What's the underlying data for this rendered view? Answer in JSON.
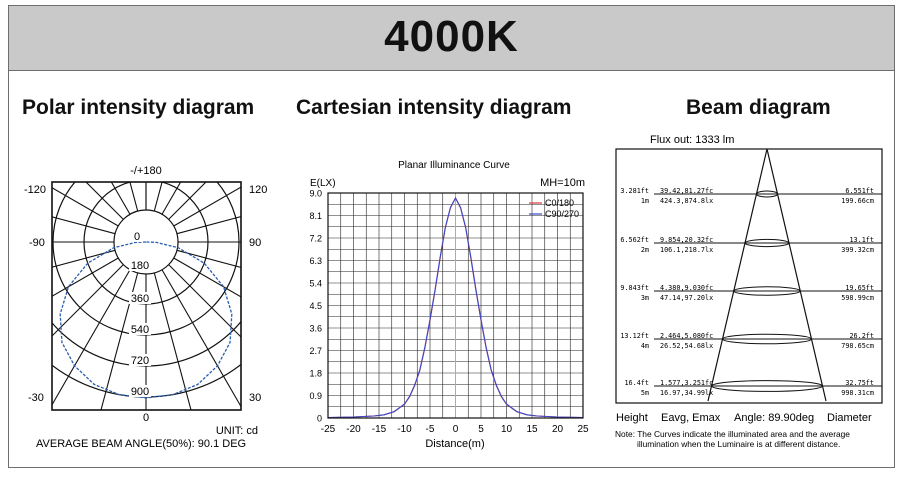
{
  "header": {
    "title": "4000K"
  },
  "sections": {
    "polar_title": "Polar intensity diagram",
    "cartesian_title": "Cartesian intensity diagram",
    "beam_title": "Beam diagram"
  },
  "polar": {
    "angle_labels": {
      "top": "-/+180",
      "upper_left": "-120",
      "upper_right": "120",
      "mid_left": "-90",
      "mid_right": "90",
      "lower_left": "-30",
      "lower_right": "30",
      "bottom": "0"
    },
    "ring_labels": [
      "0",
      "180",
      "360",
      "540",
      "720",
      "900"
    ],
    "unit": "UNIT: cd",
    "average_beam_angle": "AVERAGE BEAM ANGLE(50%): 90.1 DEG",
    "curve_color": "#2a5db0"
  },
  "cartesian": {
    "subtitle": "Planar Illuminance Curve",
    "ylabel": "E(LX)",
    "xlabel": "Distance(m)",
    "mh": "MH=10m",
    "legend": [
      "C0/180",
      "C90/270"
    ]
  },
  "chart_data": {
    "type": "line",
    "title": "Planar Illuminance Curve",
    "xlabel": "Distance(m)",
    "ylabel": "E(LX)",
    "xlim": [
      -25,
      25
    ],
    "ylim": [
      0,
      9.0
    ],
    "x_ticks": [
      "-25",
      "-20",
      "-15",
      "-10",
      "-5",
      "0",
      "5",
      "10",
      "15",
      "20",
      "25"
    ],
    "y_ticks": [
      "0",
      "0.9",
      "1.8",
      "2.7",
      "3.6",
      "4.5",
      "5.4",
      "6.3",
      "7.2",
      "8.1",
      "9.0"
    ],
    "x": [
      -25,
      -20,
      -16,
      -14,
      -12,
      -10,
      -9,
      -8,
      -7,
      -6,
      -5,
      -4,
      -3,
      -2,
      -1,
      0,
      1,
      2,
      3,
      4,
      5,
      6,
      7,
      8,
      9,
      10,
      12,
      14,
      16,
      20,
      25
    ],
    "series": [
      {
        "name": "C0/180",
        "color": "#d23a3a",
        "values": [
          0.02,
          0.04,
          0.08,
          0.13,
          0.25,
          0.55,
          0.85,
          1.3,
          1.9,
          2.8,
          3.9,
          5.1,
          6.4,
          7.6,
          8.4,
          8.8,
          8.4,
          7.6,
          6.4,
          5.1,
          3.9,
          2.8,
          1.9,
          1.3,
          0.85,
          0.55,
          0.25,
          0.13,
          0.08,
          0.04,
          0.02
        ]
      },
      {
        "name": "C90/270",
        "color": "#3a48c8",
        "values": [
          0.02,
          0.04,
          0.08,
          0.13,
          0.26,
          0.56,
          0.87,
          1.32,
          1.93,
          2.84,
          3.94,
          5.15,
          6.45,
          7.62,
          8.42,
          8.8,
          8.42,
          7.62,
          6.45,
          5.15,
          3.94,
          2.84,
          1.93,
          1.32,
          0.87,
          0.56,
          0.26,
          0.13,
          0.08,
          0.04,
          0.02
        ]
      }
    ]
  },
  "beam": {
    "flux": "Flux out: 1333 lm",
    "rows": [
      {
        "height_ft": "3.281ft",
        "height_m": "1m",
        "e_fc": "39.42,81.27fc",
        "e_lx": "424.3,874.8lx",
        "d_ft": "6.551ft",
        "d_cm": "199.66cm"
      },
      {
        "height_ft": "6.562ft",
        "height_m": "2m",
        "e_fc": "9.854,20.32fc",
        "e_lx": "106.1,218.7lx",
        "d_ft": "13.1ft",
        "d_cm": "399.32cm"
      },
      {
        "height_ft": "9.843ft",
        "height_m": "3m",
        "e_fc": "4.380,9.030fc",
        "e_lx": "47.14,97.20lx",
        "d_ft": "19.65ft",
        "d_cm": "598.99cm"
      },
      {
        "height_ft": "13.12ft",
        "height_m": "4m",
        "e_fc": "2.464,5.080fc",
        "e_lx": "26.52,54.68lx",
        "d_ft": "26.2ft",
        "d_cm": "798.65cm"
      },
      {
        "height_ft": "16.4ft",
        "height_m": "5m",
        "e_fc": "1.577,3.251fc",
        "e_lx": "16.97,34.99lx",
        "d_ft": "32.75ft",
        "d_cm": "998.31cm"
      }
    ],
    "footer_height": "Height",
    "footer_eavg": "Eavg, Emax",
    "footer_angle": "Angle: 89.90deg",
    "footer_diameter": "Diameter",
    "note_line1": "Note: The Curves indicate the illuminated area and the average",
    "note_line2": "illumination when the Luminaire is at different distance."
  }
}
